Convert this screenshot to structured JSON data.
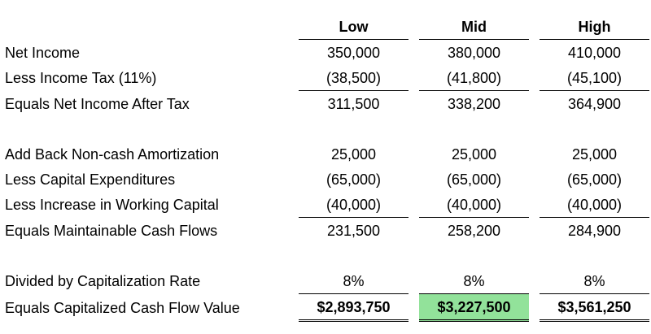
{
  "columns": [
    "Low",
    "Mid",
    "High"
  ],
  "rows": [
    {
      "label": "Net Income",
      "values": [
        "350,000",
        "380,000",
        "410,000"
      ]
    },
    {
      "label": "Less Income Tax (11%)",
      "values": [
        "(38,500)",
        "(41,800)",
        "(45,100)"
      ]
    },
    {
      "label": "Equals Net Income After Tax",
      "values": [
        "311,500",
        "338,200",
        "364,900"
      ]
    },
    {
      "label": "Add Back Non-cash Amortization",
      "values": [
        "25,000",
        "25,000",
        "25,000"
      ]
    },
    {
      "label": "Less Capital Expenditures",
      "values": [
        "(65,000)",
        "(65,000)",
        "(65,000)"
      ]
    },
    {
      "label": "Less Increase in Working Capital",
      "values": [
        "(40,000)",
        "(40,000)",
        "(40,000)"
      ]
    },
    {
      "label": "Equals Maintainable Cash Flows",
      "values": [
        "231,500",
        "258,200",
        "284,900"
      ]
    },
    {
      "label": "Divided by Capitalization Rate",
      "values": [
        "8%",
        "8%",
        "8%"
      ]
    },
    {
      "label": "Equals Capitalized Cash Flow Value",
      "values": [
        "$2,893,750",
        "$3,227,500",
        "$3,561,250"
      ]
    }
  ],
  "highlight_color": "#92e29a"
}
